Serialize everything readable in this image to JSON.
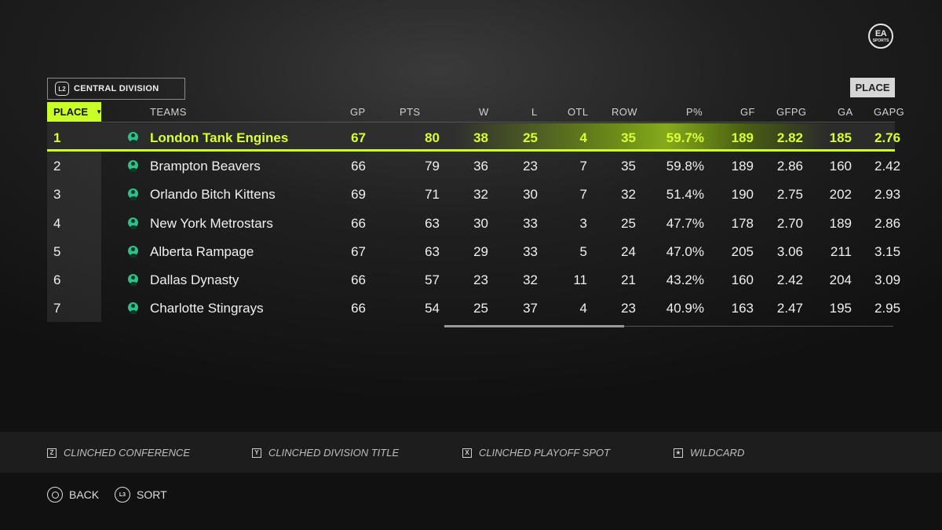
{
  "header": {
    "logo_text": "EA",
    "logo_sub": "SPORTS",
    "division_button": "L2",
    "division": "CENTRAL DIVISION",
    "sort_label": "PLACE"
  },
  "table": {
    "place_header": "PLACE",
    "columns": [
      "TEAMS",
      "GP",
      "PTS",
      "W",
      "L",
      "OTL",
      "ROW",
      "P%",
      "GF",
      "GFPG",
      "GA",
      "GAPG"
    ],
    "rows": [
      {
        "place": "1",
        "team": "London Tank Engines",
        "gp": "67",
        "pts": "80",
        "w": "38",
        "l": "25",
        "otl": "4",
        "row": "35",
        "pct": "59.7%",
        "gf": "189",
        "gfpg": "2.82",
        "ga": "185",
        "gapg": "2.76"
      },
      {
        "place": "2",
        "team": "Brampton Beavers",
        "gp": "66",
        "pts": "79",
        "w": "36",
        "l": "23",
        "otl": "7",
        "row": "35",
        "pct": "59.8%",
        "gf": "189",
        "gfpg": "2.86",
        "ga": "160",
        "gapg": "2.42"
      },
      {
        "place": "3",
        "team": "Orlando Bitch Kittens",
        "gp": "69",
        "pts": "71",
        "w": "32",
        "l": "30",
        "otl": "7",
        "row": "32",
        "pct": "51.4%",
        "gf": "190",
        "gfpg": "2.75",
        "ga": "202",
        "gapg": "2.93"
      },
      {
        "place": "4",
        "team": "New York Metrostars",
        "gp": "66",
        "pts": "63",
        "w": "30",
        "l": "33",
        "otl": "3",
        "row": "25",
        "pct": "47.7%",
        "gf": "178",
        "gfpg": "2.70",
        "ga": "189",
        "gapg": "2.86"
      },
      {
        "place": "5",
        "team": "Alberta Rampage",
        "gp": "67",
        "pts": "63",
        "w": "29",
        "l": "33",
        "otl": "5",
        "row": "24",
        "pct": "47.0%",
        "gf": "205",
        "gfpg": "3.06",
        "ga": "211",
        "gapg": "3.15"
      },
      {
        "place": "6",
        "team": "Dallas Dynasty",
        "gp": "66",
        "pts": "57",
        "w": "23",
        "l": "32",
        "otl": "11",
        "row": "21",
        "pct": "43.2%",
        "gf": "160",
        "gfpg": "2.42",
        "ga": "204",
        "gapg": "3.09"
      },
      {
        "place": "7",
        "team": "Charlotte Stingrays",
        "gp": "66",
        "pts": "54",
        "w": "25",
        "l": "37",
        "otl": "4",
        "row": "23",
        "pct": "40.9%",
        "gf": "163",
        "gfpg": "2.47",
        "ga": "195",
        "gapg": "2.95"
      }
    ]
  },
  "legend": [
    {
      "key": "Z",
      "label": "CLINCHED CONFERENCE"
    },
    {
      "key": "Y",
      "label": "CLINCHED DIVISION TITLE"
    },
    {
      "key": "X",
      "label": "CLINCHED PLAYOFF SPOT"
    },
    {
      "key": "★",
      "label": "WILDCARD"
    }
  ],
  "nav": {
    "back_label": "BACK",
    "sort_button": "L3",
    "sort_label": "SORT"
  },
  "colors": {
    "accent": "#c9ff26",
    "team_icon": "#2fc08a"
  }
}
